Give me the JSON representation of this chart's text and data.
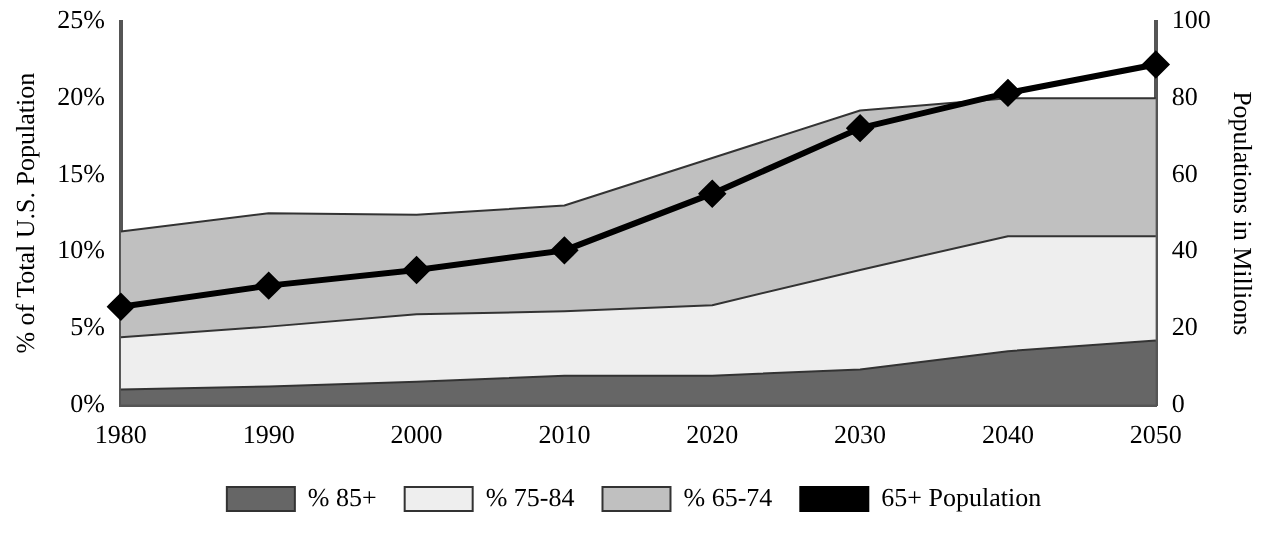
{
  "chart_data": {
    "type": "area",
    "stacked": true,
    "ylabel": "% of Total U.S. Population",
    "y2label": "Populations in Millions",
    "categories": [
      "1980",
      "1990",
      "2000",
      "2010",
      "2020",
      "2030",
      "2040",
      "2050"
    ],
    "series": [
      {
        "name": "% 85+",
        "color": "#666666",
        "values": [
          1.0,
          1.2,
          1.5,
          1.9,
          1.9,
          2.3,
          3.5,
          4.2
        ]
      },
      {
        "name": "% 75-84",
        "color": "#eeeeee",
        "values": [
          3.4,
          3.9,
          4.4,
          4.2,
          4.6,
          6.5,
          7.5,
          6.8
        ]
      },
      {
        "name": "% 65-74",
        "color": "#c0c0c0",
        "values": [
          6.9,
          7.4,
          6.5,
          6.9,
          9.6,
          10.4,
          9.0,
          9.0
        ]
      },
      {
        "name": "65+ Population",
        "type": "line",
        "axis": "y2",
        "color": "#000000",
        "marker": "diamond",
        "values": [
          25.6,
          31.1,
          35.2,
          40.3,
          55.1,
          72.2,
          81.4,
          88.8
        ]
      }
    ],
    "ylim": [
      0,
      25
    ],
    "yticks": [
      {
        "value": 0,
        "label": "0%"
      },
      {
        "value": 5,
        "label": "5%"
      },
      {
        "value": 10,
        "label": "10%"
      },
      {
        "value": 15,
        "label": "15%"
      },
      {
        "value": 20,
        "label": "20%"
      },
      {
        "value": 25,
        "label": "25%"
      }
    ],
    "y2lim": [
      0,
      100
    ],
    "y2ticks": [
      0,
      20,
      40,
      60,
      80,
      100
    ],
    "grid": false,
    "legend": "bottom"
  }
}
